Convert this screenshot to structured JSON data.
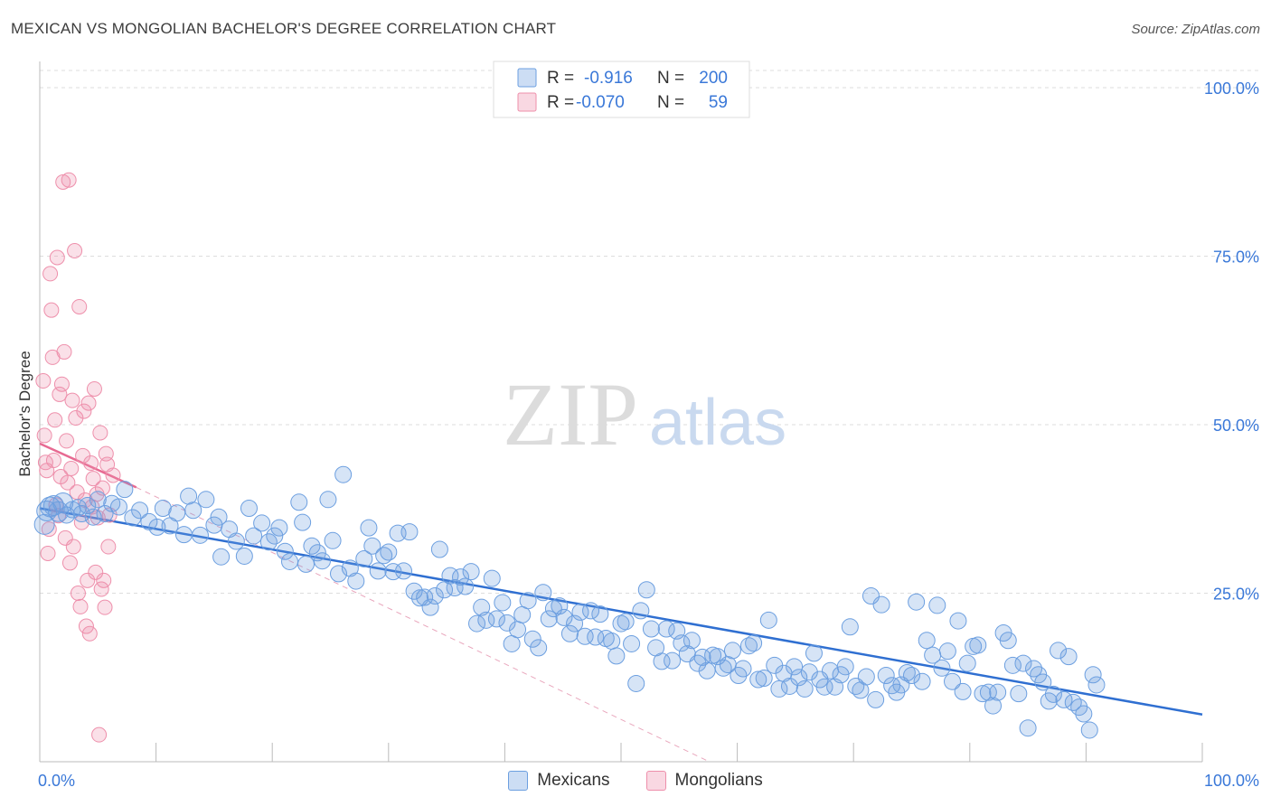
{
  "header": {
    "title": "MEXICAN VS MONGOLIAN BACHELOR'S DEGREE CORRELATION CHART",
    "source": "Source: ZipAtlas.com"
  },
  "watermark": {
    "zip": "ZIP",
    "atlas": "atlas"
  },
  "colors": {
    "blue": "#6c9fe0",
    "blue_fill": "rgba(108,159,224,0.28)",
    "blue_line": "#2f6fd1",
    "pink": "#ee8fab",
    "pink_fill": "rgba(238,143,171,0.28)",
    "pink_line": "#e76a92",
    "grid": "#dddddd",
    "value_text": "#3a78d8"
  },
  "stats_legend": [
    {
      "r_label": "R =",
      "r_value": "-0.916",
      "n_label": "N =",
      "n_value": "200"
    },
    {
      "r_label": "R =",
      "r_value": "-0.070",
      "n_label": "N =",
      "n_value": "59"
    }
  ],
  "series_legend": [
    "Mexicans",
    "Mongolians"
  ],
  "chart_data": {
    "type": "scatter",
    "title": "MEXICAN VS MONGOLIAN BACHELOR'S DEGREE CORRELATION CHART",
    "xlabel": "",
    "ylabel": "Bachelor's Degree",
    "xlim": [
      0,
      100
    ],
    "ylim": [
      0,
      100
    ],
    "x_tick_labels": [
      "0.0%",
      "100.0%"
    ],
    "y_tick_labels": [
      "100.0%",
      "75.0%",
      "50.0%",
      "25.0%"
    ],
    "y_ticks": [
      100,
      75,
      50,
      25
    ],
    "grid": true,
    "series": [
      {
        "name": "Mexicans",
        "r": -0.916,
        "n": 200,
        "trend": {
          "x0": 0,
          "y0": 37.6,
          "x1": 100,
          "y1": 7.0,
          "style": "solid"
        },
        "points": [
          [
            0.4,
            35.2
          ],
          [
            0.6,
            37.2
          ],
          [
            0.9,
            37.8
          ],
          [
            1.2,
            38.0
          ],
          [
            1.6,
            37.1
          ],
          [
            2.0,
            38.4
          ],
          [
            2.3,
            36.6
          ],
          [
            2.8,
            37.4
          ],
          [
            3.3,
            37.7
          ],
          [
            3.6,
            36.8
          ],
          [
            4.1,
            38.0
          ],
          [
            4.6,
            36.3
          ],
          [
            5.0,
            38.9
          ],
          [
            5.6,
            36.8
          ],
          [
            6.2,
            38.3
          ],
          [
            6.8,
            37.8
          ],
          [
            7.3,
            40.4
          ],
          [
            8.0,
            36.2
          ],
          [
            8.6,
            37.3
          ],
          [
            9.4,
            35.6
          ],
          [
            10.1,
            34.8
          ],
          [
            10.6,
            37.6
          ],
          [
            11.2,
            35.0
          ],
          [
            11.8,
            36.9
          ],
          [
            12.4,
            33.7
          ],
          [
            12.8,
            39.4
          ],
          [
            13.2,
            37.3
          ],
          [
            13.8,
            33.6
          ],
          [
            14.3,
            38.9
          ],
          [
            15.0,
            35.1
          ],
          [
            15.4,
            36.3
          ],
          [
            15.6,
            30.4
          ],
          [
            16.3,
            34.5
          ],
          [
            16.9,
            32.7
          ],
          [
            17.6,
            30.5
          ],
          [
            18.0,
            37.6
          ],
          [
            18.4,
            33.5
          ],
          [
            19.1,
            35.4
          ],
          [
            19.7,
            32.6
          ],
          [
            20.2,
            33.5
          ],
          [
            20.6,
            34.7
          ],
          [
            21.1,
            31.2
          ],
          [
            21.5,
            29.7
          ],
          [
            22.3,
            38.5
          ],
          [
            22.6,
            35.5
          ],
          [
            22.9,
            29.3
          ],
          [
            23.4,
            32.0
          ],
          [
            23.9,
            31.0
          ],
          [
            24.3,
            29.8
          ],
          [
            24.8,
            38.9
          ],
          [
            25.2,
            32.8
          ],
          [
            25.7,
            27.9
          ],
          [
            26.1,
            42.6
          ],
          [
            26.7,
            28.7
          ],
          [
            27.2,
            26.8
          ],
          [
            27.9,
            30.1
          ],
          [
            28.3,
            34.7
          ],
          [
            28.6,
            32.0
          ],
          [
            29.1,
            28.3
          ],
          [
            29.6,
            30.6
          ],
          [
            30.0,
            31.1
          ],
          [
            30.4,
            28.2
          ],
          [
            30.8,
            33.9
          ],
          [
            31.3,
            28.3
          ],
          [
            31.8,
            34.1
          ],
          [
            32.2,
            25.3
          ],
          [
            32.7,
            24.3
          ],
          [
            33.1,
            24.4
          ],
          [
            33.6,
            22.9
          ],
          [
            34.0,
            24.6
          ],
          [
            34.4,
            31.5
          ],
          [
            34.8,
            25.5
          ],
          [
            35.3,
            27.6
          ],
          [
            35.7,
            25.8
          ],
          [
            36.2,
            27.4
          ],
          [
            36.6,
            26.0
          ],
          [
            37.1,
            28.2
          ],
          [
            37.6,
            20.5
          ],
          [
            38.0,
            22.9
          ],
          [
            38.4,
            21.0
          ],
          [
            38.9,
            27.2
          ],
          [
            39.3,
            21.2
          ],
          [
            39.8,
            23.6
          ],
          [
            40.2,
            20.6
          ],
          [
            40.6,
            17.5
          ],
          [
            41.1,
            19.6
          ],
          [
            41.5,
            21.8
          ],
          [
            42.0,
            23.9
          ],
          [
            42.4,
            18.2
          ],
          [
            42.9,
            16.9
          ],
          [
            43.3,
            25.1
          ],
          [
            43.8,
            21.2
          ],
          [
            44.2,
            22.7
          ],
          [
            44.7,
            23.1
          ],
          [
            45.1,
            21.4
          ],
          [
            45.6,
            19.0
          ],
          [
            46.0,
            20.5
          ],
          [
            46.5,
            22.2
          ],
          [
            46.9,
            18.6
          ],
          [
            47.4,
            22.4
          ],
          [
            47.8,
            18.5
          ],
          [
            48.2,
            21.9
          ],
          [
            48.7,
            18.3
          ],
          [
            49.2,
            17.9
          ],
          [
            49.6,
            15.7
          ],
          [
            50.0,
            20.5
          ],
          [
            50.4,
            20.8
          ],
          [
            50.9,
            17.5
          ],
          [
            51.3,
            11.6
          ],
          [
            51.7,
            22.4
          ],
          [
            52.2,
            25.5
          ],
          [
            52.6,
            19.7
          ],
          [
            53.0,
            16.9
          ],
          [
            53.5,
            14.9
          ],
          [
            53.9,
            19.7
          ],
          [
            54.4,
            15.0
          ],
          [
            54.8,
            19.4
          ],
          [
            55.2,
            17.6
          ],
          [
            55.7,
            16.0
          ],
          [
            56.1,
            18.0
          ],
          [
            56.6,
            14.6
          ],
          [
            57.0,
            15.5
          ],
          [
            57.4,
            13.5
          ],
          [
            57.9,
            15.8
          ],
          [
            58.3,
            15.6
          ],
          [
            58.8,
            13.9
          ],
          [
            59.2,
            14.4
          ],
          [
            59.6,
            16.5
          ],
          [
            60.1,
            12.8
          ],
          [
            60.5,
            13.8
          ],
          [
            61.0,
            17.2
          ],
          [
            61.4,
            17.6
          ],
          [
            61.8,
            12.2
          ],
          [
            62.3,
            12.4
          ],
          [
            62.7,
            21.0
          ],
          [
            63.2,
            14.3
          ],
          [
            63.6,
            10.8
          ],
          [
            64.0,
            13.1
          ],
          [
            64.5,
            11.2
          ],
          [
            64.9,
            14.1
          ],
          [
            65.3,
            12.5
          ],
          [
            65.8,
            10.8
          ],
          [
            66.2,
            13.3
          ],
          [
            66.6,
            16.1
          ],
          [
            67.1,
            12.2
          ],
          [
            67.5,
            11.1
          ],
          [
            68.0,
            13.5
          ],
          [
            68.4,
            11.1
          ],
          [
            68.9,
            12.9
          ],
          [
            69.3,
            14.1
          ],
          [
            69.7,
            20.0
          ],
          [
            70.2,
            11.2
          ],
          [
            70.6,
            10.6
          ],
          [
            71.1,
            12.6
          ],
          [
            71.5,
            24.6
          ],
          [
            71.9,
            9.2
          ],
          [
            72.4,
            23.3
          ],
          [
            72.8,
            12.8
          ],
          [
            73.3,
            11.3
          ],
          [
            73.7,
            10.3
          ],
          [
            74.1,
            11.4
          ],
          [
            74.6,
            13.2
          ],
          [
            75.0,
            12.8
          ],
          [
            75.4,
            23.7
          ],
          [
            75.9,
            11.9
          ],
          [
            76.3,
            18.0
          ],
          [
            76.8,
            15.8
          ],
          [
            77.2,
            23.2
          ],
          [
            77.6,
            13.9
          ],
          [
            78.1,
            16.4
          ],
          [
            78.5,
            11.9
          ],
          [
            79.0,
            20.9
          ],
          [
            79.4,
            10.4
          ],
          [
            79.8,
            14.6
          ],
          [
            80.3,
            17.1
          ],
          [
            80.7,
            17.3
          ],
          [
            81.1,
            10.1
          ],
          [
            81.6,
            10.3
          ],
          [
            82.0,
            8.3
          ],
          [
            82.4,
            10.3
          ],
          [
            82.9,
            19.1
          ],
          [
            83.3,
            18.0
          ],
          [
            83.7,
            14.3
          ],
          [
            84.2,
            10.1
          ],
          [
            84.6,
            14.6
          ],
          [
            85.0,
            5.0
          ],
          [
            85.5,
            13.8
          ],
          [
            85.9,
            12.9
          ],
          [
            86.3,
            11.8
          ],
          [
            86.8,
            9.0
          ],
          [
            87.2,
            10.0
          ],
          [
            87.6,
            16.5
          ],
          [
            88.1,
            9.2
          ],
          [
            88.5,
            15.6
          ],
          [
            88.9,
            8.8
          ],
          [
            89.4,
            8.1
          ],
          [
            89.8,
            7.1
          ],
          [
            90.3,
            4.7
          ],
          [
            90.6,
            12.9
          ],
          [
            90.9,
            11.4
          ]
        ]
      },
      {
        "name": "Mongolians",
        "r": -0.07,
        "n": 59,
        "trend": {
          "x0": 0,
          "y0": 47.2,
          "x1": 8.3,
          "y1": 40.7,
          "style": "solid",
          "extended_dashed_to": {
            "x": 57.6,
            "y": 0
          }
        },
        "points": [
          [
            0.3,
            56.5
          ],
          [
            0.4,
            48.4
          ],
          [
            0.5,
            44.4
          ],
          [
            0.6,
            43.2
          ],
          [
            0.7,
            30.9
          ],
          [
            0.8,
            34.5
          ],
          [
            0.9,
            72.4
          ],
          [
            1.0,
            67.0
          ],
          [
            1.1,
            60.0
          ],
          [
            1.2,
            44.7
          ],
          [
            1.3,
            50.7
          ],
          [
            1.4,
            38.1
          ],
          [
            1.5,
            74.8
          ],
          [
            1.6,
            36.5
          ],
          [
            1.7,
            54.5
          ],
          [
            1.8,
            42.3
          ],
          [
            1.9,
            56.0
          ],
          [
            2.0,
            86.0
          ],
          [
            2.1,
            60.8
          ],
          [
            2.2,
            33.2
          ],
          [
            2.3,
            47.6
          ],
          [
            2.4,
            41.4
          ],
          [
            2.5,
            86.3
          ],
          [
            2.6,
            29.5
          ],
          [
            2.7,
            43.5
          ],
          [
            2.8,
            53.6
          ],
          [
            2.9,
            31.9
          ],
          [
            3.0,
            75.8
          ],
          [
            3.1,
            51.0
          ],
          [
            3.2,
            40.0
          ],
          [
            3.3,
            25.0
          ],
          [
            3.4,
            67.5
          ],
          [
            3.5,
            23.0
          ],
          [
            3.6,
            35.5
          ],
          [
            3.7,
            45.4
          ],
          [
            3.8,
            52.0
          ],
          [
            3.9,
            38.8
          ],
          [
            4.0,
            20.1
          ],
          [
            4.1,
            26.9
          ],
          [
            4.2,
            53.2
          ],
          [
            4.3,
            19.0
          ],
          [
            4.4,
            44.3
          ],
          [
            4.5,
            37.8
          ],
          [
            4.6,
            42.0
          ],
          [
            4.7,
            55.3
          ],
          [
            4.8,
            28.1
          ],
          [
            4.9,
            39.7
          ],
          [
            5.0,
            36.2
          ],
          [
            5.1,
            4.0
          ],
          [
            5.2,
            48.8
          ],
          [
            5.3,
            25.6
          ],
          [
            5.4,
            40.6
          ],
          [
            5.5,
            26.9
          ],
          [
            5.6,
            22.9
          ],
          [
            5.7,
            45.7
          ],
          [
            5.8,
            44.1
          ],
          [
            5.9,
            31.9
          ],
          [
            6.0,
            36.6
          ],
          [
            6.3,
            42.5
          ]
        ]
      }
    ]
  }
}
